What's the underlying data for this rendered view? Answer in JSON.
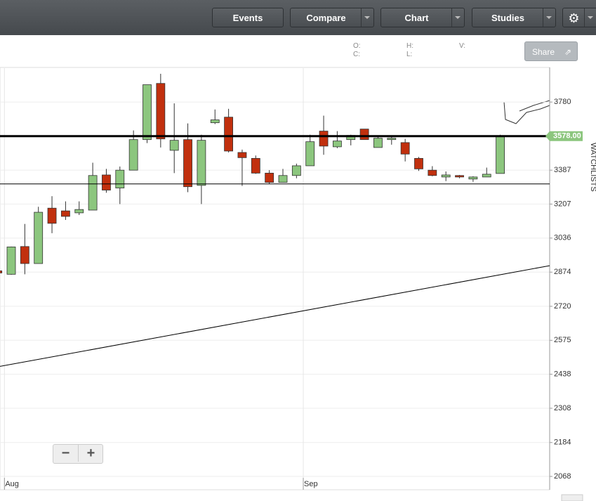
{
  "toolbar": {
    "buttons": [
      "Events",
      "Compare",
      "Chart",
      "Studies"
    ]
  },
  "quote": {
    "labels": [
      "O:",
      "C:",
      "H:",
      "L:",
      "V:"
    ]
  },
  "share": "Share",
  "zoom": {
    "out": "−",
    "in": "+"
  },
  "side_tab": "WATCHLISTS",
  "chart_data": {
    "type": "candlestick",
    "log_scale": true,
    "grid": true,
    "up_color": "#8cc67e",
    "down_color": "#c1300e",
    "categories": [
      null,
      "Aug",
      null,
      null,
      null,
      null,
      null,
      null,
      null,
      null,
      null,
      null,
      null,
      null,
      null,
      null,
      null,
      null,
      null,
      null,
      null,
      null,
      null,
      "Sep",
      null,
      null,
      null,
      null,
      null,
      null,
      null,
      null,
      null,
      null,
      null,
      null,
      null,
      null
    ],
    "open": [
      2880,
      2864,
      2995,
      2914,
      3186,
      3172,
      3162,
      3176,
      3361,
      3291,
      3387,
      3558,
      3895,
      3497,
      3558,
      3305,
      3656,
      3689,
      3485,
      3452,
      3371,
      3321,
      3358,
      3411,
      3607,
      3517,
      3558,
      3619,
      3513,
      3558,
      3541,
      3452,
      3387,
      3350,
      3358,
      3339,
      3350,
      3369
    ],
    "high": [
      2885,
      2995,
      3106,
      3193,
      3248,
      3221,
      3221,
      3428,
      3394,
      3407,
      3611,
      3887,
      3956,
      3772,
      3652,
      3586,
      3735,
      3739,
      3501,
      3468,
      3387,
      3394,
      3423,
      3586,
      3698,
      3607,
      3586,
      3619,
      3578,
      3574,
      3562,
      3460,
      3409,
      3380,
      3361,
      3354,
      3401,
      3586
    ],
    "low": [
      2865,
      2862,
      2864,
      2914,
      3060,
      3126,
      3151,
      3176,
      3266,
      3207,
      3387,
      3538,
      3513,
      3371,
      3269,
      3207,
      3648,
      3485,
      3302,
      3367,
      3313,
      3321,
      3343,
      3411,
      3472,
      3509,
      3525,
      3558,
      3513,
      3529,
      3435,
      3383,
      3354,
      3328,
      3343,
      3324,
      3350,
      3369
    ],
    "close": [
      2870,
      2993,
      2914,
      3165,
      3109,
      3144,
      3179,
      3358,
      3280,
      3387,
      3558,
      3887,
      3562,
      3554,
      3298,
      3554,
      3673,
      3493,
      3456,
      3371,
      3321,
      3358,
      3411,
      3546,
      3521,
      3550,
      3582,
      3558,
      3566,
      3566,
      3476,
      3394,
      3358,
      3361,
      3350,
      3350,
      3365,
      3578
    ],
    "ylim": [
      2068,
      3992
    ],
    "yticks": [
      2068,
      2184,
      2308,
      2438,
      2575,
      2720,
      2874,
      3036,
      3207,
      3387,
      3780
    ],
    "last_price": {
      "value": 3578,
      "label": "3578.00"
    },
    "horizontal_lines": [
      3578,
      3313
    ],
    "trendline": [
      2469,
      2904
    ]
  }
}
